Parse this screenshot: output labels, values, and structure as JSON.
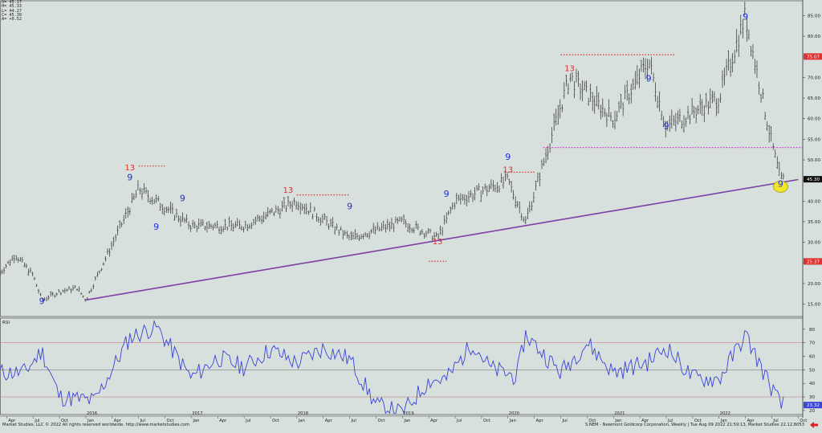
{
  "ohlc_readout": [
    "O= 45.17",
    "H= 45.33",
    "L= 44.27",
    "C= 45.30",
    "A= +0.52"
  ],
  "footer": {
    "left": "Market Studies, LLC © 2022 All rights reserved worldwide. http://www.marketstudies.com",
    "right": "S.NEM - Newmont Goldcorp Corporation, Weekly | Tue Aug 09 2022 21:59:13, Market Studies 22.12.8053"
  },
  "colors": {
    "background": "#d7e0dc",
    "bar": "#2b2b2b",
    "trendline": "#7b3fa6",
    "support_line": "#d63ad8",
    "resistance_dots": "#e03030",
    "buy_setup": "#2230d8",
    "sell_setup": "#e03030",
    "rsi_line": "#3a44d6",
    "highlight_circle": "#f0e62a"
  },
  "chart_data": [
    {
      "type": "bar",
      "title": "",
      "bar_style": "OHLC",
      "x": [
        "2016-Jan",
        "2016-Jul",
        "2017-Jan",
        "2017-Jul",
        "2018-Jan",
        "2018-Jul",
        "2019-Jan",
        "2019-May",
        "2019-Jul",
        "2020-Jan",
        "2020-Mar",
        "2020-Aug",
        "2021-Jan",
        "2021-May",
        "2021-Jul",
        "2022-Jan",
        "2022-Apr",
        "2022-Jul",
        "2022-Aug"
      ],
      "close": [
        16,
        43,
        34,
        34,
        40,
        31,
        35,
        31,
        40,
        45,
        35,
        70,
        60,
        74,
        58,
        65,
        85,
        54,
        45.3
      ],
      "ylim": [
        12,
        88
      ],
      "yticks": [
        15,
        20,
        25,
        30,
        35,
        40,
        45,
        50,
        55,
        60,
        65,
        70,
        75,
        80,
        85
      ],
      "ytick_labels": [
        "15.00",
        "20.00",
        "25.00",
        "30.00",
        "35.00",
        "40.00",
        "45.00",
        "50.00",
        "55.00",
        "60.00",
        "65.00",
        "70.00",
        "75.00",
        "80.00",
        "85.00"
      ],
      "price_flags": [
        {
          "label": "75.07",
          "value": 75.07,
          "color": "#e03030"
        },
        {
          "label": "45.30",
          "value": 45.3,
          "color": "#111111"
        },
        {
          "label": "25.37",
          "value": 25.37,
          "color": "#e03030"
        }
      ],
      "trendline": {
        "from": [
          "2016-Jan",
          16
        ],
        "to": [
          "2022-Aug",
          44.5
        ]
      },
      "support_level": 53,
      "resistance_levels": [
        {
          "value": 48.5,
          "from": "2016-Jul",
          "to": "2016-Oct"
        },
        {
          "value": 41.5,
          "from": "2018-Jan",
          "to": "2018-Jul"
        },
        {
          "value": 25.4,
          "from": "2019-Apr",
          "to": "2019-Jun"
        },
        {
          "value": 47,
          "from": "2020-Jan",
          "to": "2020-Apr"
        },
        {
          "value": 75.5,
          "from": "2020-Jul",
          "to": "2021-Aug"
        }
      ],
      "setup_labels": [
        {
          "label": "9",
          "x": "2015-Aug",
          "value": 15,
          "color": "#2230d8"
        },
        {
          "label": "13",
          "x": "2016-Jun",
          "value": 47.5,
          "color": "#e03030"
        },
        {
          "label": "9",
          "x": "2016-Jun",
          "value": 45,
          "color": "#2230d8"
        },
        {
          "label": "9",
          "x": "2016-Dec",
          "value": 40,
          "color": "#2230d8"
        },
        {
          "label": "9",
          "x": "2016-Sep",
          "value": 33,
          "color": "#2230d8"
        },
        {
          "label": "13",
          "x": "2017-Dec",
          "value": 42,
          "color": "#e03030"
        },
        {
          "label": "9",
          "x": "2018-Jul",
          "value": 38,
          "color": "#2230d8"
        },
        {
          "label": "13",
          "x": "2019-May",
          "value": 29.5,
          "color": "#e03030"
        },
        {
          "label": "9",
          "x": "2019-Jun",
          "value": 41,
          "color": "#2230d8"
        },
        {
          "label": "9",
          "x": "2020-Jan",
          "value": 50,
          "color": "#2230d8"
        },
        {
          "label": "13",
          "x": "2020-Jan",
          "value": 47,
          "color": "#e03030"
        },
        {
          "label": "13",
          "x": "2020-Aug",
          "value": 71.5,
          "color": "#e03030"
        },
        {
          "label": "9",
          "x": "2021-May",
          "value": 69,
          "color": "#2230d8"
        },
        {
          "label": "9",
          "x": "2021-Jul",
          "value": 57.5,
          "color": "#2230d8"
        },
        {
          "label": "9",
          "x": "2022-Apr",
          "value": 84,
          "color": "#2230d8"
        },
        {
          "label": "9",
          "x": "2022-Aug",
          "value": 43.5,
          "color": "#2230d8"
        }
      ],
      "highlight": {
        "x": "2022-Aug",
        "value": 43.5
      }
    },
    {
      "type": "line",
      "title": "RSI",
      "x": [
        "2015-Jun",
        "2015-Aug",
        "2015-Oct",
        "2016-Feb",
        "2016-Jun",
        "2016-Sep",
        "2017-Jan",
        "2017-Apr",
        "2017-Jul",
        "2017-Oct",
        "2018-Jan",
        "2018-Apr",
        "2018-Jul",
        "2018-Oct",
        "2019-Jan",
        "2019-Apr",
        "2019-Jun",
        "2019-Sep",
        "2019-Nov",
        "2020-Feb",
        "2020-Mar",
        "2020-Jul",
        "2020-Oct",
        "2021-Jan",
        "2021-May",
        "2021-Jul",
        "2021-Oct",
        "2022-Jan",
        "2022-Apr",
        "2022-Jun",
        "2022-Aug"
      ],
      "values": [
        48,
        64,
        30,
        27,
        74,
        82,
        44,
        59,
        52,
        65,
        55,
        66,
        58,
        24,
        18,
        42,
        43,
        70,
        51,
        45,
        76,
        48,
        70,
        48,
        56,
        67,
        44,
        43,
        76,
        49,
        24
      ],
      "ylim": [
        17,
        87
      ],
      "yticks": [
        20,
        30,
        40,
        50,
        60,
        70,
        80
      ],
      "ytick_labels": [
        "20",
        "30",
        "40",
        "50",
        "60",
        "70",
        "80"
      ],
      "reference_lines": [
        30,
        50,
        70
      ],
      "current_label": "23.32"
    }
  ],
  "x_axis": {
    "month_labels": [
      {
        "label": "Apr",
        "x": "2015-Apr"
      },
      {
        "label": "Jul",
        "x": "2015-Jul"
      },
      {
        "label": "Oct",
        "x": "2015-Oct"
      },
      {
        "label": "Jan",
        "x": "2016-Jan"
      },
      {
        "label": "Apr",
        "x": "2016-Apr"
      },
      {
        "label": "Jul",
        "x": "2016-Jul"
      },
      {
        "label": "Oct",
        "x": "2016-Oct"
      },
      {
        "label": "Jan",
        "x": "2017-Jan"
      },
      {
        "label": "Apr",
        "x": "2017-Apr"
      },
      {
        "label": "Jul",
        "x": "2017-Jul"
      },
      {
        "label": "Oct",
        "x": "2017-Oct"
      },
      {
        "label": "Jan",
        "x": "2018-Jan"
      },
      {
        "label": "Apr",
        "x": "2018-Apr"
      },
      {
        "label": "Jul",
        "x": "2018-Jul"
      },
      {
        "label": "Oct",
        "x": "2018-Oct"
      },
      {
        "label": "Jan",
        "x": "2019-Jan"
      },
      {
        "label": "Apr",
        "x": "2019-Apr"
      },
      {
        "label": "Jul",
        "x": "2019-Jul"
      },
      {
        "label": "Oct",
        "x": "2019-Oct"
      },
      {
        "label": "Jan",
        "x": "2020-Jan"
      },
      {
        "label": "Apr",
        "x": "2020-Apr"
      },
      {
        "label": "Jul",
        "x": "2020-Jul"
      },
      {
        "label": "Oct",
        "x": "2020-Oct"
      },
      {
        "label": "Jan",
        "x": "2021-Jan"
      },
      {
        "label": "Apr",
        "x": "2021-Apr"
      },
      {
        "label": "Jul",
        "x": "2021-Jul"
      },
      {
        "label": "Oct",
        "x": "2021-Oct"
      },
      {
        "label": "Jan",
        "x": "2022-Jan"
      },
      {
        "label": "Apr",
        "x": "2022-Apr"
      },
      {
        "label": "Jul",
        "x": "2022-Jul"
      },
      {
        "label": "Oct",
        "x": "2022-Oct"
      }
    ],
    "year_labels": [
      {
        "label": "2016",
        "x": "2016-Jan"
      },
      {
        "label": "2017",
        "x": "2017-Jan"
      },
      {
        "label": "2018",
        "x": "2018-Jan"
      },
      {
        "label": "2019",
        "x": "2019-Jan"
      },
      {
        "label": "2020",
        "x": "2020-Jan"
      },
      {
        "label": "2021",
        "x": "2021-Jan"
      },
      {
        "label": "2022",
        "x": "2022-Jan"
      }
    ]
  }
}
